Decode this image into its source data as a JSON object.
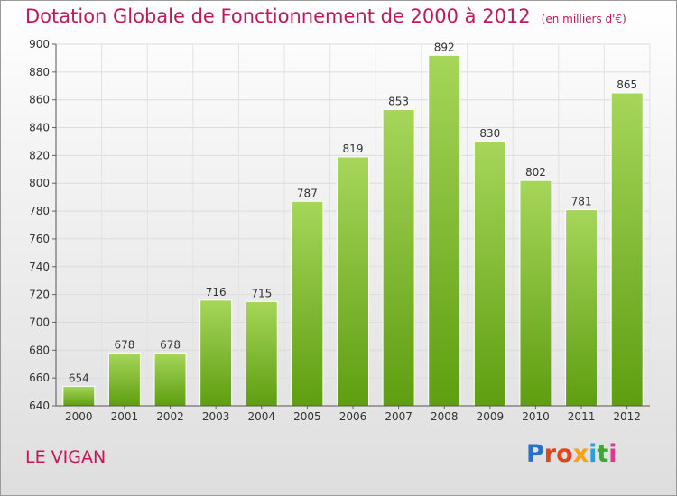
{
  "header": {
    "title": "Dotation Globale de Fonctionnement de 2000 à 2012",
    "subtitle": "(en milliers d'€)"
  },
  "footer": {
    "town": "LE VIGAN",
    "logo": "Proxiti"
  },
  "colors": {
    "title": "#c2185b",
    "bar_light": "#a6d65a",
    "bar_dark": "#5e9e10",
    "logo_letters": [
      "#2a6fc9",
      "#e0451f",
      "#e0451f",
      "#f2a21b",
      "#2a9fd6",
      "#3fa535",
      "#d93c8f"
    ]
  },
  "chart_data": {
    "type": "bar",
    "title": "Dotation Globale de Fonctionnement de 2000 à 2012",
    "subtitle": "(en milliers d'€)",
    "categories": [
      "2000",
      "2001",
      "2002",
      "2003",
      "2004",
      "2005",
      "2006",
      "2007",
      "2008",
      "2009",
      "2010",
      "2011",
      "2012"
    ],
    "values": [
      654,
      678,
      678,
      716,
      715,
      787,
      819,
      853,
      892,
      830,
      802,
      781,
      865
    ],
    "ylim": [
      640,
      900
    ],
    "yticks": [
      640,
      660,
      680,
      700,
      720,
      740,
      760,
      780,
      800,
      820,
      840,
      860,
      880,
      900
    ],
    "grid": true,
    "legend": "none"
  }
}
